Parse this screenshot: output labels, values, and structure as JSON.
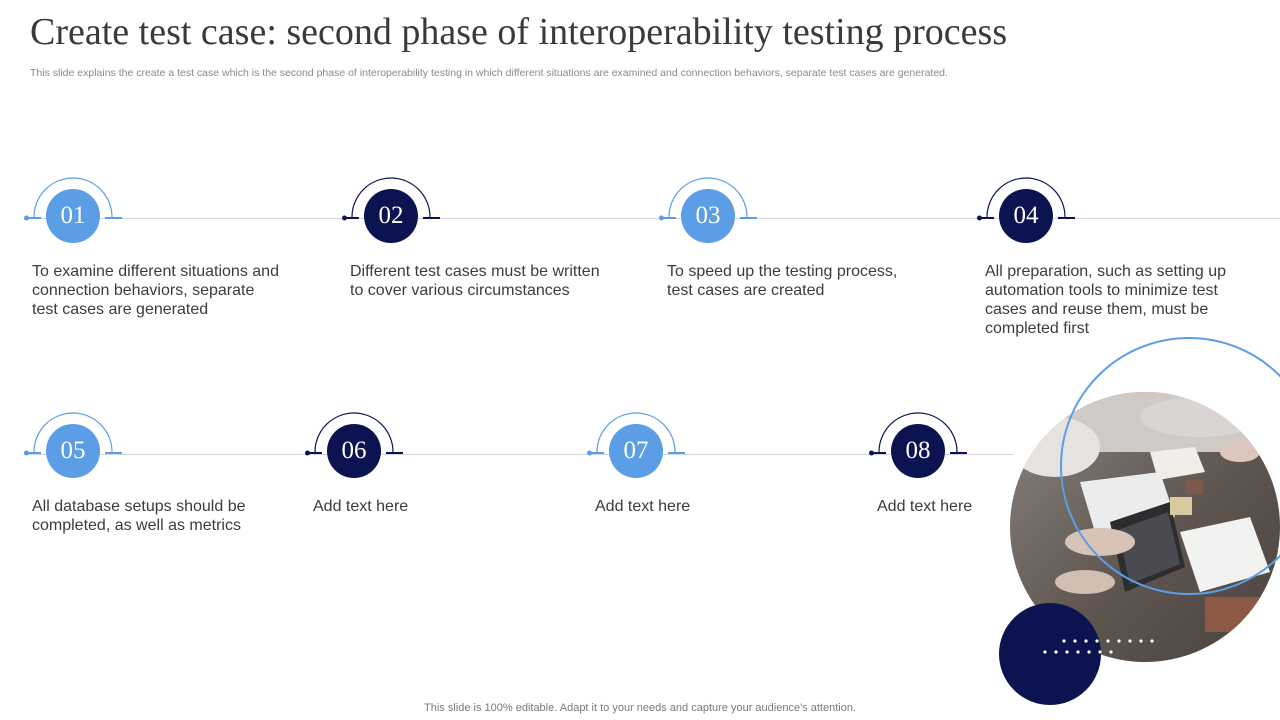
{
  "title": "Create test case: second phase of interoperability testing process",
  "subtitle": "This slide explains the create a test case which is the second phase of interoperability testing in which different situations are examined and connection behaviors, separate test cases are generated.",
  "steps": [
    {
      "num": "01",
      "text": "To examine different situations and connection behaviors, separate test cases are generated"
    },
    {
      "num": "02",
      "text": "Different test cases must be written to cover various circumstances"
    },
    {
      "num": "03",
      "text": "To speed up the testing process, test cases are created"
    },
    {
      "num": "04",
      "text": "All preparation, such as setting up automation tools to minimize test cases and reuse them, must be completed first"
    },
    {
      "num": "05",
      "text": "All database setups should be completed, as well as metrics"
    },
    {
      "num": "06",
      "text": "Add text here"
    },
    {
      "num": "07",
      "text": "Add text here"
    },
    {
      "num": "08",
      "text": "Add text here"
    }
  ],
  "footer": "This slide is 100% editable. Adapt it to your needs and capture your audience's attention.",
  "colors": {
    "light_blue": "#5b9ee6",
    "navy": "#0b1450",
    "line": "#d0d5de"
  },
  "image": {
    "description_name": "team-meeting-laptop-photo"
  }
}
